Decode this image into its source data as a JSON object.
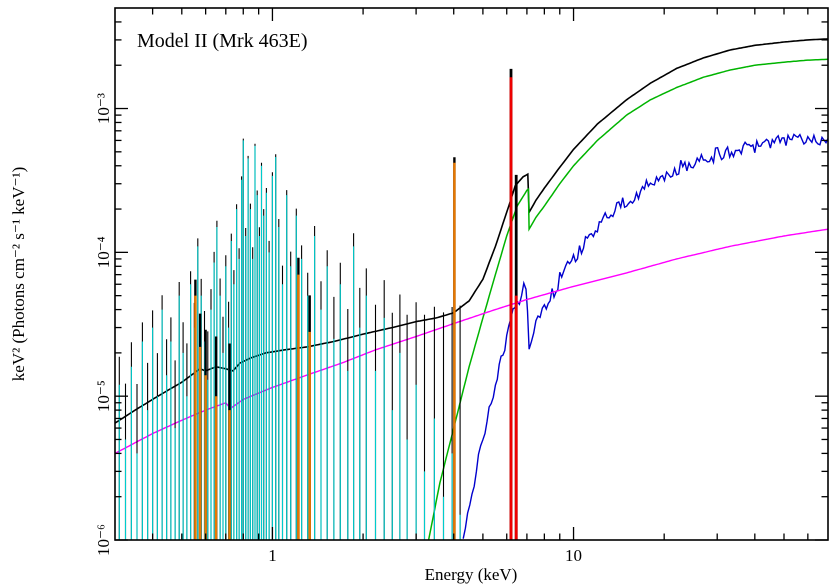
{
  "chart_data": {
    "type": "line",
    "title": "Model II (Mrk 463E)",
    "xlabel": "Energy (keV)",
    "ylabel": "keV² (Photons cm⁻² s⁻¹ keV⁻¹)",
    "xscale": "log",
    "yscale": "log",
    "xlim": [
      0.3,
      70
    ],
    "ylim": [
      1e-06,
      0.005
    ],
    "grid": false,
    "legend": null,
    "x_ticks": [
      {
        "v": 1,
        "label": "1"
      },
      {
        "v": 10,
        "label": "10"
      }
    ],
    "y_ticks": [
      {
        "v": 1e-06,
        "label": "10⁻⁶"
      },
      {
        "v": 1e-05,
        "label": "10⁻⁵"
      },
      {
        "v": 0.0001,
        "label": "10⁻⁴"
      },
      {
        "v": 0.001,
        "label": "10⁻³"
      }
    ],
    "series": [
      {
        "name": "total_model",
        "color": "#000000",
        "kind": "curve",
        "width": 1.6,
        "points": [
          [
            0.3,
            6.5e-06
          ],
          [
            0.35,
            8e-06
          ],
          [
            0.4,
            9.5e-06
          ],
          [
            0.45,
            1.1e-05
          ],
          [
            0.5,
            1.25e-05
          ],
          [
            0.55,
            1.45e-05
          ],
          [
            0.575,
            1.55e-05
          ],
          [
            0.6,
            1.5e-05
          ],
          [
            0.65,
            1.6e-05
          ],
          [
            0.7,
            1.55e-05
          ],
          [
            0.74,
            1.5e-05
          ],
          [
            0.78,
            1.7e-05
          ],
          [
            0.85,
            1.85e-05
          ],
          [
            0.95,
            2e-05
          ],
          [
            1.1,
            2.1e-05
          ],
          [
            1.3,
            2.2e-05
          ],
          [
            1.6,
            2.4e-05
          ],
          [
            2.0,
            2.7e-05
          ],
          [
            2.5,
            3e-05
          ],
          [
            3.0,
            3.3e-05
          ],
          [
            3.5,
            3.5e-05
          ],
          [
            4.0,
            3.8e-05
          ],
          [
            4.5,
            4.6e-05
          ],
          [
            5.0,
            6.5e-05
          ],
          [
            5.5,
            0.00011
          ],
          [
            6.0,
            0.00019
          ],
          [
            6.4,
            0.00029
          ],
          [
            6.8,
            0.000335
          ],
          [
            7.05,
            0.00035
          ],
          [
            7.12,
            0.00019
          ],
          [
            7.5,
            0.00023
          ],
          [
            8.0,
            0.00028
          ],
          [
            9.0,
            0.00039
          ],
          [
            10,
            0.00052
          ],
          [
            12,
            0.00078
          ],
          [
            15,
            0.00115
          ],
          [
            18,
            0.0015
          ],
          [
            22,
            0.0019
          ],
          [
            27,
            0.00225
          ],
          [
            33,
            0.00255
          ],
          [
            40,
            0.00275
          ],
          [
            50,
            0.0029
          ],
          [
            60,
            0.003
          ],
          [
            70,
            0.00305
          ]
        ]
      },
      {
        "name": "absorbed_primary_powerlaw",
        "color": "#00b400",
        "kind": "curve",
        "width": 1.5,
        "points": [
          [
            3.3,
            1e-06
          ],
          [
            3.6,
            2.5e-06
          ],
          [
            4.0,
            6e-06
          ],
          [
            4.5,
            1.6e-05
          ],
          [
            5.0,
            3.5e-05
          ],
          [
            5.5,
            7e-05
          ],
          [
            6.0,
            0.00013
          ],
          [
            6.5,
            0.00021
          ],
          [
            7.0,
            0.00027
          ],
          [
            7.08,
            0.000275
          ],
          [
            7.12,
            0.000145
          ],
          [
            7.5,
            0.000175
          ],
          [
            8.0,
            0.00021
          ],
          [
            9.0,
            0.0003
          ],
          [
            10,
            0.0004
          ],
          [
            12,
            0.0006
          ],
          [
            15,
            0.0009
          ],
          [
            18,
            0.00115
          ],
          [
            22,
            0.0014
          ],
          [
            27,
            0.00165
          ],
          [
            33,
            0.00185
          ],
          [
            40,
            0.002
          ],
          [
            50,
            0.0021
          ],
          [
            60,
            0.00217
          ],
          [
            70,
            0.0022
          ]
        ]
      },
      {
        "name": "absorbed_secondary_powerlaw",
        "color": "#0000cd",
        "kind": "curve",
        "width": 1.4,
        "noise": 0.05,
        "points": [
          [
            4.3,
            1e-06
          ],
          [
            4.6,
            2.2e-06
          ],
          [
            5.0,
            5e-06
          ],
          [
            5.5,
            1.2e-05
          ],
          [
            6.0,
            2.6e-05
          ],
          [
            6.5,
            4.5e-05
          ],
          [
            6.95,
            6e-05
          ],
          [
            7.12,
            2.2e-05
          ],
          [
            7.5,
            3e-05
          ],
          [
            8.0,
            4e-05
          ],
          [
            9.0,
            6.5e-05
          ],
          [
            10,
            9e-05
          ],
          [
            12,
            0.00015
          ],
          [
            15,
            0.00023
          ],
          [
            18,
            0.0003
          ],
          [
            22,
            0.00038
          ],
          [
            27,
            0.00045
          ],
          [
            33,
            0.00051
          ],
          [
            40,
            0.00055
          ],
          [
            50,
            0.00059
          ],
          [
            60,
            0.00061
          ],
          [
            70,
            0.00063
          ]
        ]
      },
      {
        "name": "scattered_powerlaw",
        "color": "#ff00ff",
        "kind": "curve",
        "width": 1.4,
        "points": [
          [
            0.3,
            4e-06
          ],
          [
            0.4,
            5.5e-06
          ],
          [
            0.5,
            6.8e-06
          ],
          [
            0.6,
            8e-06
          ],
          [
            0.7,
            9e-06
          ],
          [
            0.725,
            8.2e-06
          ],
          [
            0.8,
            9.5e-06
          ],
          [
            1.0,
            1.15e-05
          ],
          [
            1.3,
            1.4e-05
          ],
          [
            1.7,
            1.7e-05
          ],
          [
            2.2,
            2.1e-05
          ],
          [
            3.0,
            2.6e-05
          ],
          [
            4.0,
            3.2e-05
          ],
          [
            5.5,
            4e-05
          ],
          [
            7.0,
            4.7e-05
          ],
          [
            10,
            5.8e-05
          ],
          [
            15,
            7.2e-05
          ],
          [
            22,
            9e-05
          ],
          [
            33,
            0.00011
          ],
          [
            50,
            0.00013
          ],
          [
            70,
            0.000145
          ]
        ]
      },
      {
        "name": "photoionized_emission_lines",
        "color": "#00cccc",
        "kind": "lines",
        "width": 1.1,
        "lines": [
          [
            0.31,
            1.2e-05
          ],
          [
            0.325,
            5e-06
          ],
          [
            0.34,
            1.6e-05
          ],
          [
            0.355,
            4e-06
          ],
          [
            0.37,
            2.4e-05
          ],
          [
            0.385,
            8e-06
          ],
          [
            0.4,
            3e-05
          ],
          [
            0.415,
            1e-05
          ],
          [
            0.43,
            4e-05
          ],
          [
            0.445,
            1.4e-05
          ],
          [
            0.46,
            2.4e-05
          ],
          [
            0.475,
            6e-06
          ],
          [
            0.49,
            5e-05
          ],
          [
            0.505,
            2e-05
          ],
          [
            0.52,
            1e-05
          ],
          [
            0.535,
            6e-05
          ],
          [
            0.55,
            3e-05
          ],
          [
            0.565,
            0.00011
          ],
          [
            0.58,
            5e-05
          ],
          [
            0.595,
            2.4e-05
          ],
          [
            0.61,
            1.3e-05
          ],
          [
            0.625,
            4e-05
          ],
          [
            0.64,
            8.5e-05
          ],
          [
            0.654,
            0.00015
          ],
          [
            0.67,
            5e-05
          ],
          [
            0.685,
            2e-05
          ],
          [
            0.7,
            8e-05
          ],
          [
            0.715,
            3e-05
          ],
          [
            0.73,
            0.00012
          ],
          [
            0.745,
            6e-05
          ],
          [
            0.76,
            0.0002
          ],
          [
            0.775,
            9e-05
          ],
          [
            0.79,
            0.00032
          ],
          [
            0.8,
            0.0006
          ],
          [
            0.815,
            0.00013
          ],
          [
            0.83,
            0.00045
          ],
          [
            0.845,
            0.0002
          ],
          [
            0.86,
            9e-05
          ],
          [
            0.875,
            0.00055
          ],
          [
            0.89,
            0.00025
          ],
          [
            0.905,
            0.00013
          ],
          [
            0.92,
            0.0004
          ],
          [
            0.935,
            0.00018
          ],
          [
            0.955,
            0.00026
          ],
          [
            0.975,
            0.0001
          ],
          [
            1.0,
            0.00034
          ],
          [
            1.025,
            0.00046
          ],
          [
            1.05,
            0.00015
          ],
          [
            1.08,
            6e-05
          ],
          [
            1.115,
            0.00025
          ],
          [
            1.15,
            8e-05
          ],
          [
            1.2,
            0.00018
          ],
          [
            1.25,
            9e-05
          ],
          [
            1.31,
            5e-05
          ],
          [
            1.38,
            0.00013
          ],
          [
            1.45,
            4e-05
          ],
          [
            1.52,
            8e-05
          ],
          [
            1.6,
            2.5e-05
          ],
          [
            1.68,
            6e-05
          ],
          [
            1.78,
            1.5e-05
          ],
          [
            1.86,
            0.00011
          ],
          [
            1.95,
            3e-05
          ],
          [
            2.05,
            5e-05
          ],
          [
            2.2,
            1.5e-05
          ],
          [
            2.35,
            3.5e-05
          ],
          [
            2.5,
            8e-06
          ],
          [
            2.65,
            2e-05
          ],
          [
            2.8,
            5e-06
          ],
          [
            3.0,
            1.2e-05
          ],
          [
            3.2,
            3e-06
          ],
          [
            3.45,
            7e-06
          ],
          [
            3.7,
            2e-06
          ],
          [
            3.95,
            4e-06
          ],
          [
            4.2,
            1.5e-06
          ]
        ]
      },
      {
        "name": "gaussian_emission_lines",
        "color": "#e87800",
        "kind": "lines",
        "width": 2.4,
        "lines": [
          [
            0.555,
            5e-05
          ],
          [
            0.575,
            2.2e-05
          ],
          [
            0.6,
            1.4e-05
          ],
          [
            0.65,
            1e-05
          ],
          [
            0.72,
            8e-06
          ],
          [
            1.22,
            7e-05
          ],
          [
            1.33,
            2.8e-05
          ],
          [
            4.02,
            0.00042
          ]
        ]
      },
      {
        "name": "fe_k_emission_lines",
        "color": "#ee0000",
        "kind": "lines",
        "width": 2.8,
        "lines": [
          [
            6.2,
            0.00165
          ],
          [
            6.45,
            5e-05
          ]
        ]
      }
    ]
  }
}
